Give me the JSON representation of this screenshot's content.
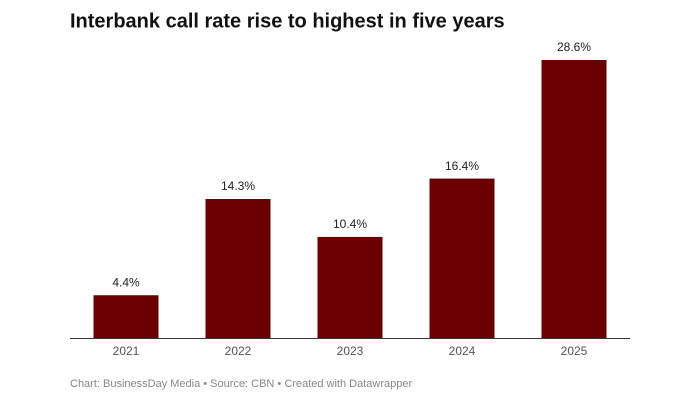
{
  "chart_data": {
    "type": "bar",
    "title": "Interbank call rate rise to highest in five years",
    "categories": [
      "2021",
      "2022",
      "2023",
      "2024",
      "2025"
    ],
    "values": [
      4.4,
      14.3,
      10.4,
      16.4,
      28.6
    ],
    "value_labels": [
      "4.4%",
      "14.3%",
      "10.4%",
      "16.4%",
      "28.6%"
    ],
    "color": "#6b0000",
    "footer": "Chart: BusinessDay Media • Source: CBN • Created with Datawrapper"
  }
}
